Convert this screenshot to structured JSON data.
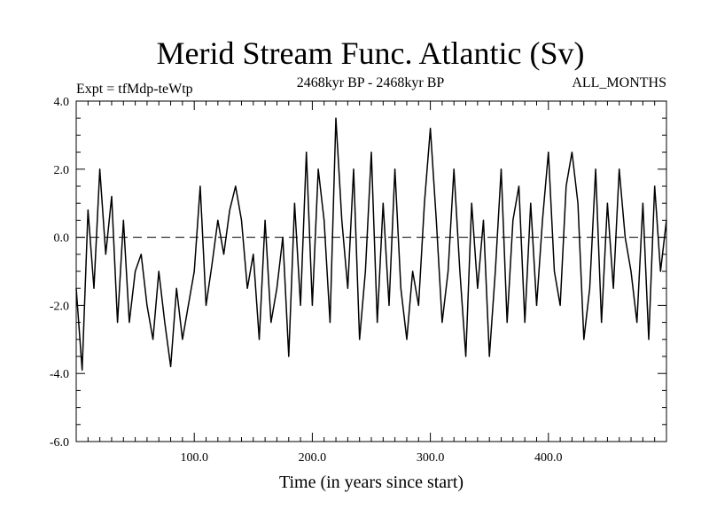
{
  "chart_data": {
    "type": "line",
    "title": "Merid Stream Func. Atlantic (Sv)",
    "subtitle_left": "Expt = tfMdp-teWtp",
    "subtitle_center": "2468kyr BP - 2468kyr BP",
    "subtitle_right": "ALL_MONTHS",
    "xlabel": "Time (in years since start)",
    "ylabel": "",
    "xlim": [
      0,
      500
    ],
    "ylim": [
      -6,
      4
    ],
    "x_ticks": [
      100,
      200,
      300,
      400
    ],
    "x_tick_labels": [
      "100.0",
      "200.0",
      "300.0",
      "400.0"
    ],
    "y_ticks": [
      -6,
      -4,
      -2,
      0,
      2,
      4
    ],
    "y_tick_labels": [
      "-6.0",
      "-4.0",
      "-2.0",
      "0.0",
      "2.0",
      "4.0"
    ],
    "reference_line": 0,
    "series": [
      {
        "name": "Merid Stream Func. Atlantic",
        "x": [
          0,
          5,
          10,
          15,
          20,
          25,
          30,
          35,
          40,
          45,
          50,
          55,
          60,
          65,
          70,
          75,
          80,
          85,
          90,
          95,
          100,
          105,
          110,
          115,
          120,
          125,
          130,
          135,
          140,
          145,
          150,
          155,
          160,
          165,
          170,
          175,
          180,
          185,
          190,
          195,
          200,
          205,
          210,
          215,
          220,
          225,
          230,
          235,
          240,
          245,
          250,
          255,
          260,
          265,
          270,
          275,
          280,
          285,
          290,
          295,
          300,
          305,
          310,
          315,
          320,
          325,
          330,
          335,
          340,
          345,
          350,
          355,
          360,
          365,
          370,
          375,
          380,
          385,
          390,
          395,
          400,
          405,
          410,
          415,
          420,
          425,
          430,
          435,
          440,
          445,
          450,
          455,
          460,
          465,
          470,
          475,
          480,
          485,
          490,
          495,
          500
        ],
        "values": [
          -1.5,
          -3.9,
          0.8,
          -1.5,
          2.0,
          -0.5,
          1.2,
          -2.5,
          0.5,
          -2.5,
          -1.0,
          -0.5,
          -2.0,
          -3.0,
          -1.0,
          -2.5,
          -3.8,
          -1.5,
          -3.0,
          -2.0,
          -1.0,
          1.5,
          -2.0,
          -0.8,
          0.5,
          -0.5,
          0.8,
          1.5,
          0.5,
          -1.5,
          -0.5,
          -3.0,
          0.5,
          -2.5,
          -1.5,
          0.0,
          -3.5,
          1.0,
          -2.0,
          2.5,
          -2.0,
          2.0,
          0.5,
          -2.5,
          3.5,
          0.5,
          -1.5,
          2.0,
          -3.0,
          -1.0,
          2.5,
          -2.5,
          1.0,
          -2.0,
          2.0,
          -1.5,
          -3.0,
          -1.0,
          -2.0,
          1.0,
          3.2,
          0.5,
          -2.5,
          -1.0,
          2.0,
          -1.0,
          -3.5,
          1.0,
          -1.5,
          0.5,
          -3.5,
          -1.0,
          2.0,
          -2.5,
          0.5,
          1.5,
          -2.5,
          1.0,
          -2.0,
          0.5,
          2.5,
          -1.0,
          -2.0,
          1.5,
          2.5,
          1.0,
          -3.0,
          -1.5,
          2.0,
          -2.5,
          1.0,
          -1.5,
          2.0,
          0.0,
          -1.0,
          -2.5,
          1.0,
          -3.0,
          1.5,
          -1.0,
          0.5
        ]
      }
    ]
  }
}
